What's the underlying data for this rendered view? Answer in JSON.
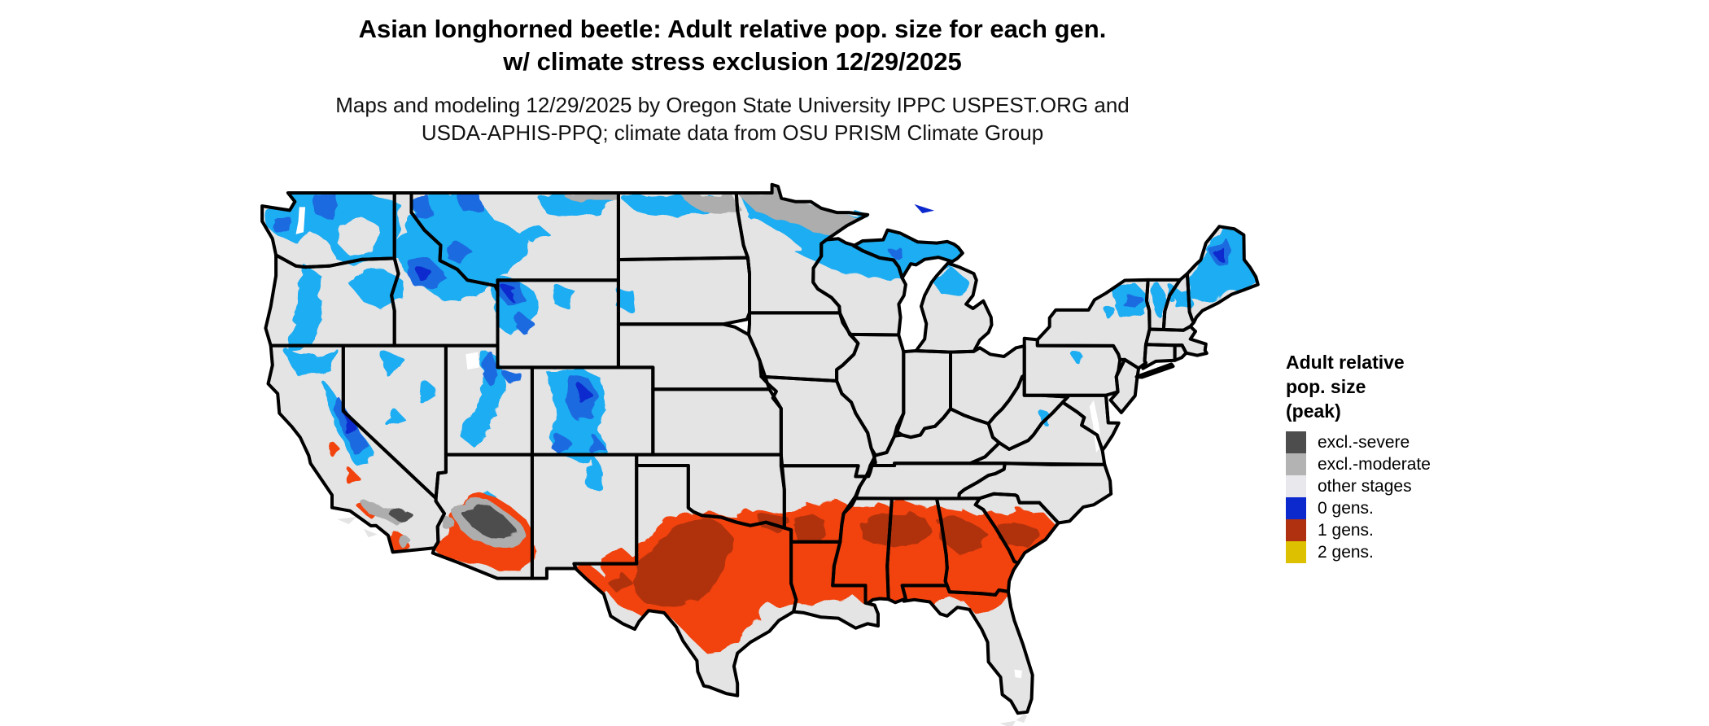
{
  "header": {
    "title_line1": "Asian longhorned beetle: Adult relative pop. size for each gen.",
    "title_line2": "w/ climate stress exclusion 12/29/2025",
    "subtitle_line1": "Maps and modeling 12/29/2025 by Oregon State University IPPC USPEST.ORG and",
    "subtitle_line2": "USDA-APHIS-PPQ; climate data from OSU PRISM Climate Group"
  },
  "legend": {
    "title_lines": [
      "Adult relative",
      "pop. size",
      "(peak)"
    ],
    "items": [
      {
        "label": "excl.-severe",
        "color": "#4D4D4D"
      },
      {
        "label": "excl.-moderate",
        "color": "#B3B3B3"
      },
      {
        "label": "other stages",
        "color": "#E9E9ED"
      },
      {
        "label": "0 gens.",
        "color": "#0C29CE"
      },
      {
        "label": "1 gens.",
        "color": "#B03110"
      },
      {
        "label": "2 gens.",
        "color": "#DDC000"
      }
    ]
  },
  "map": {
    "palette": {
      "base": "#E4E4E5",
      "border": "#000000",
      "cyan": "#1CADF2",
      "medium_blue": "#1A6BE0",
      "deep_blue": "#0C29CE",
      "red": "#F2430C",
      "dark_red": "#B03110",
      "moderate_gray": "#ADADAD",
      "severe_gray": "#4D4D4D",
      "water": "#FFFFFF"
    }
  }
}
